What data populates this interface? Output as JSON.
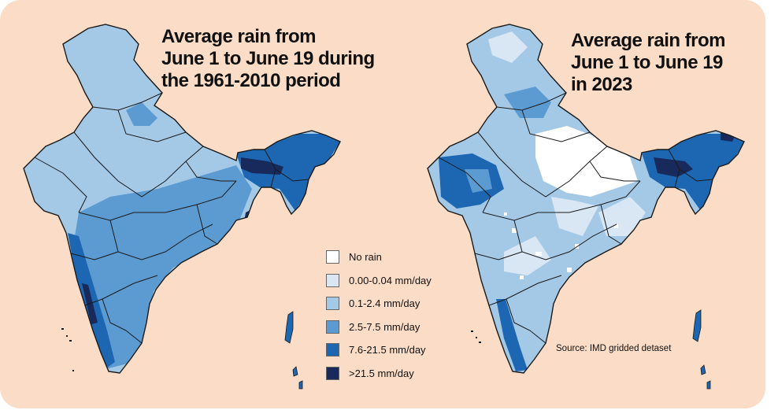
{
  "maps": [
    {
      "title_lines": [
        "Average rain from",
        "June 1 to June 19 during",
        "the 1961-2010 period"
      ]
    },
    {
      "title_lines": [
        "Average rain from",
        "June 1 to June 19",
        "in 2023"
      ]
    }
  ],
  "legend": {
    "items": [
      {
        "label": "No rain",
        "color": "#ffffff"
      },
      {
        "label": "0.00-0.04 mm/day",
        "color": "#d9e6f4"
      },
      {
        "label": "0.1-2.4 mm/day",
        "color": "#a3c9e6"
      },
      {
        "label": "2.5-7.5 mm/day",
        "color": "#5b9bd2"
      },
      {
        "label": "7.6-21.5 mm/day",
        "color": "#1d67b2"
      },
      {
        "label": ">21.5 mm/day",
        "color": "#18295c"
      }
    ]
  },
  "source": "Source: IMD gridded detaset",
  "colors": {
    "background": "#fbdcc6",
    "boundary": "#1a1a1a"
  }
}
